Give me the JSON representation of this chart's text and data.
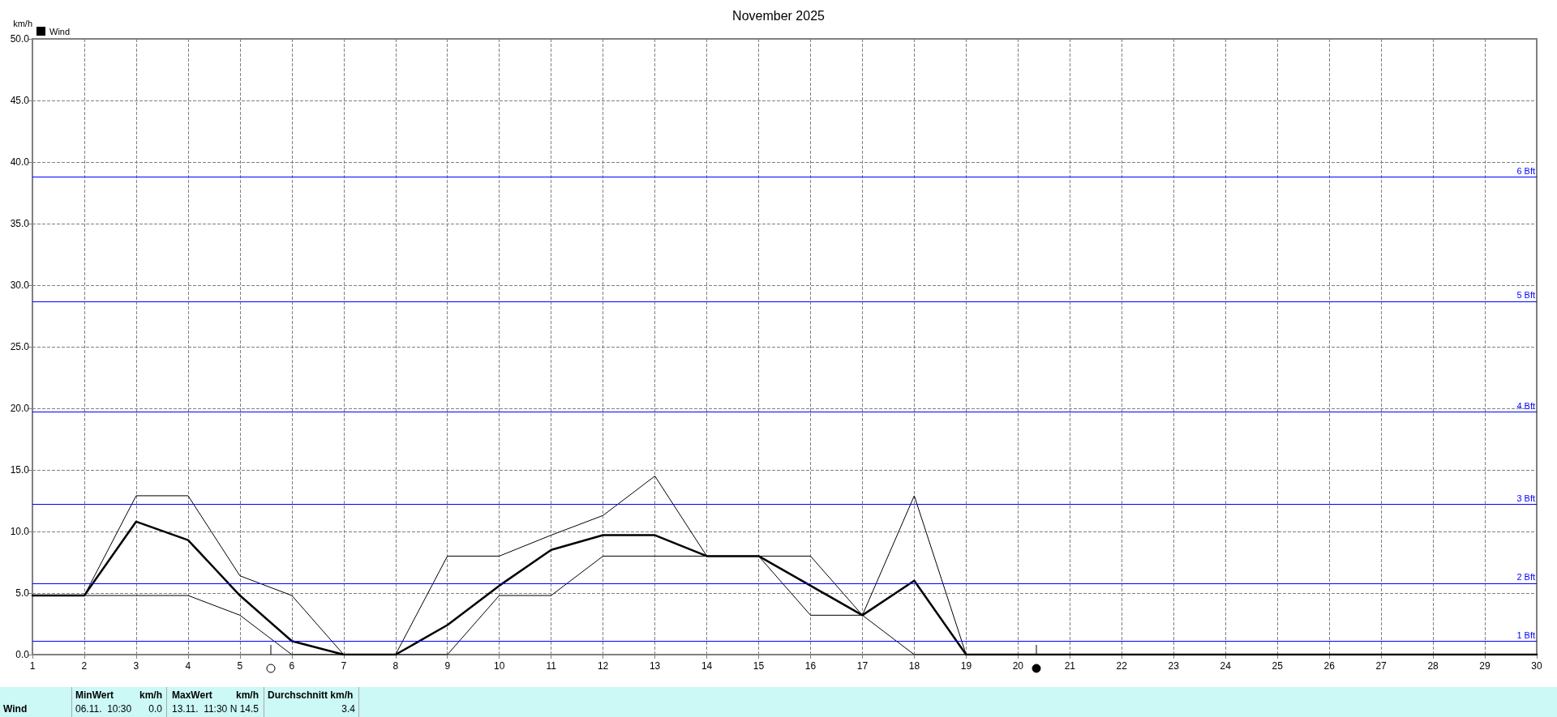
{
  "chart_data": {
    "type": "line",
    "title": "November 2025",
    "ylabel": "km/h",
    "x": [
      1,
      2,
      3,
      4,
      5,
      6,
      7,
      8,
      9,
      10,
      11,
      12,
      13,
      14,
      15,
      16,
      17,
      18,
      19,
      20,
      21,
      22,
      23,
      24,
      25,
      26,
      27,
      28,
      29,
      30
    ],
    "series": [
      {
        "color": "#000000",
        "values": [
          4.8,
          4.8,
          12.9,
          12.9,
          6.4,
          4.8,
          0,
          0,
          8.0,
          8.0,
          9.7,
          11.3,
          14.5,
          8.0,
          8.0,
          8.0,
          3.2,
          12.9,
          0,
          0,
          0,
          0,
          0,
          0,
          0,
          0,
          0,
          0,
          0,
          0
        ]
      },
      {
        "name": "Wind",
        "color": "#000000",
        "values": [
          4.8,
          4.8,
          10.8,
          9.3,
          4.8,
          1.1,
          0,
          0,
          2.4,
          5.6,
          8.5,
          9.7,
          9.7,
          8.0,
          8.0,
          5.6,
          3.2,
          6.0,
          0,
          0,
          0,
          0,
          0,
          0,
          0,
          0,
          0,
          0,
          0,
          0
        ]
      },
      {
        "color": "#000000",
        "values": [
          4.8,
          4.8,
          4.8,
          4.8,
          3.2,
          0,
          0,
          0,
          0,
          4.8,
          4.8,
          8.0,
          8.0,
          8.0,
          8.0,
          3.2,
          3.2,
          0,
          0,
          0,
          0,
          0,
          0,
          0,
          0,
          0,
          0,
          0,
          0,
          0
        ]
      }
    ],
    "xlim": [
      1,
      30
    ],
    "xticks": [
      1,
      2,
      3,
      4,
      5,
      6,
      7,
      8,
      9,
      10,
      11,
      12,
      13,
      14,
      15,
      16,
      17,
      18,
      19,
      20,
      21,
      22,
      23,
      24,
      25,
      26,
      27,
      28,
      29,
      30
    ],
    "ylim": [
      0,
      50
    ],
    "yticks": [
      {
        "value": 0,
        "label": "0.0"
      },
      {
        "value": 5,
        "label": "5.0"
      },
      {
        "value": 10,
        "label": "10.0"
      },
      {
        "value": 15,
        "label": "15.0"
      },
      {
        "value": 20,
        "label": "20.0"
      },
      {
        "value": 25,
        "label": "25.0"
      },
      {
        "value": 30,
        "label": "30.0"
      },
      {
        "value": 35,
        "label": "35.0"
      },
      {
        "value": 40,
        "label": "40.0"
      },
      {
        "value": 45,
        "label": "45.0"
      },
      {
        "value": 50,
        "label": "50.0"
      }
    ],
    "ref_lines": [
      {
        "axis": "y",
        "value": 1.1,
        "label": "1 Bft",
        "color": "#0000ff"
      },
      {
        "axis": "y",
        "value": 5.8,
        "label": "2 Bft",
        "color": "#0000ff"
      },
      {
        "axis": "y",
        "value": 12.2,
        "label": "3 Bft",
        "color": "#0000ff"
      },
      {
        "axis": "y",
        "value": 19.7,
        "label": "4 Bft",
        "color": "#0000ff"
      },
      {
        "axis": "y",
        "value": 28.7,
        "label": "5 Bft",
        "color": "#0000ff"
      },
      {
        "axis": "y",
        "value": 38.8,
        "label": "6 Bft",
        "color": "#0000ff"
      }
    ],
    "annotations": [
      "Wind",
      "MinWert",
      "km/h",
      "06.11.  10:30",
      "0.0",
      "MaxWert",
      "km/h",
      "13.11.  11:30",
      "N 14.5",
      "Durchschnitt km/h",
      "3.4"
    ],
    "grid": true,
    "legend": "top left",
    "marker": "none",
    "line_style": "solid"
  }
}
